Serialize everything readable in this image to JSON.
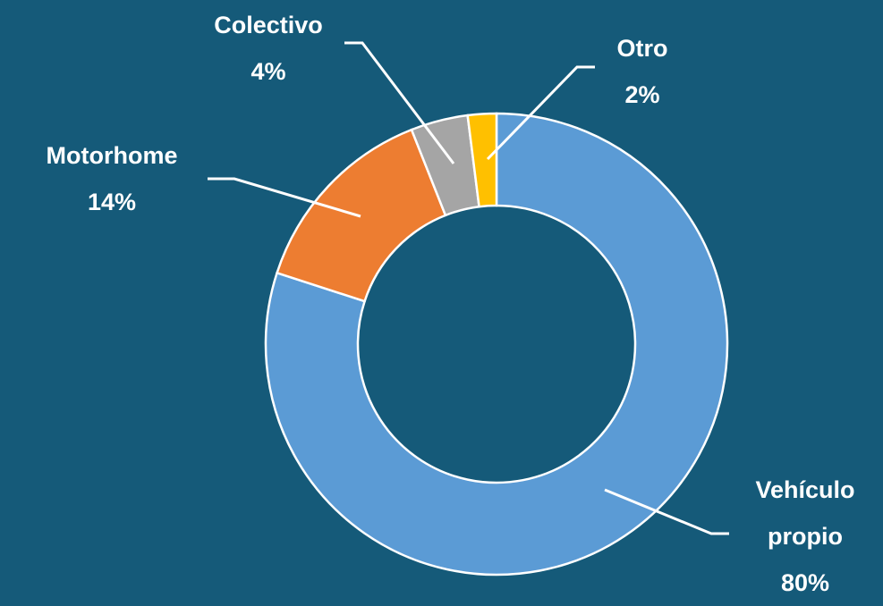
{
  "chart_data": {
    "type": "pie",
    "categories": [
      "Vehículo propio",
      "Motorhome",
      "Colectivo",
      "Otro"
    ],
    "values": [
      80,
      14,
      4,
      2
    ],
    "value_labels": [
      "80%",
      "14%",
      "4%",
      "2%"
    ],
    "colors": [
      "#5b9bd5",
      "#ed7d31",
      "#a5a5a5",
      "#ffc000"
    ],
    "donut": true
  }
}
